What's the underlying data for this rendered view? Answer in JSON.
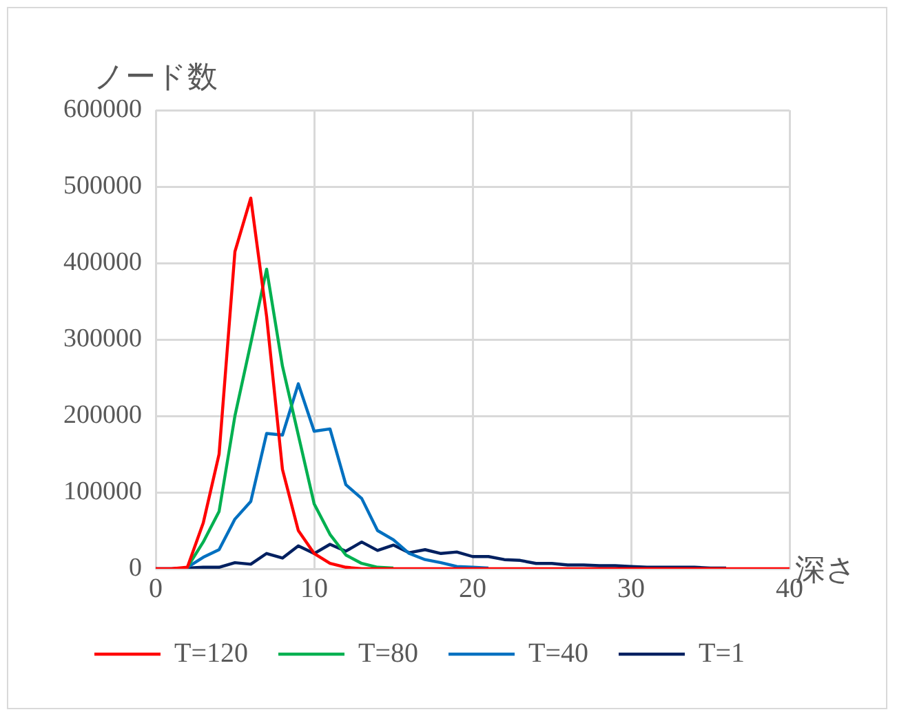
{
  "chart_data": {
    "type": "line",
    "xlabel": "深さ",
    "ylabel": "ノード数",
    "x": [
      0,
      1,
      2,
      3,
      4,
      5,
      6,
      7,
      8,
      9,
      10,
      11,
      12,
      13,
      14,
      15,
      16,
      17,
      18,
      19,
      20,
      21,
      22,
      23,
      24,
      25,
      26,
      27,
      28,
      29,
      30,
      31,
      32,
      33,
      34,
      35,
      36,
      37,
      38,
      39,
      40
    ],
    "series": [
      {
        "name": "T=120",
        "color": "#ff0000",
        "values": [
          0,
          0,
          2000,
          60000,
          150000,
          415000,
          485000,
          330000,
          130000,
          50000,
          20000,
          7000,
          2000,
          0,
          0,
          0,
          0,
          0,
          0,
          0,
          0,
          0,
          0,
          0,
          0,
          0,
          0,
          0,
          0,
          0,
          0,
          0,
          0,
          0,
          0,
          0,
          0,
          0,
          0,
          0,
          0
        ]
      },
      {
        "name": "T=80",
        "color": "#00b050",
        "values": [
          null,
          null,
          2000,
          35000,
          75000,
          200000,
          295000,
          392000,
          265000,
          175000,
          85000,
          45000,
          18000,
          7000,
          2000,
          1000,
          null,
          null,
          null,
          null,
          null,
          null,
          null,
          null,
          null,
          null,
          null,
          null,
          null,
          null,
          null,
          null,
          null,
          null,
          null,
          null,
          null,
          null,
          null,
          null,
          null
        ]
      },
      {
        "name": "T=40",
        "color": "#0070c0",
        "values": [
          null,
          null,
          2000,
          15000,
          25000,
          65000,
          88000,
          177000,
          175000,
          242000,
          180000,
          183000,
          110000,
          92000,
          50000,
          38000,
          20000,
          12000,
          8000,
          3000,
          2000,
          1000,
          null,
          null,
          null,
          null,
          null,
          null,
          null,
          null,
          null,
          null,
          null,
          null,
          null,
          null,
          null,
          null,
          null,
          null,
          null
        ]
      },
      {
        "name": "T=1",
        "color": "#002060",
        "values": [
          0,
          0,
          1000,
          2000,
          2000,
          8000,
          6000,
          20000,
          14000,
          30000,
          20000,
          32000,
          23000,
          35000,
          24000,
          31000,
          21000,
          25000,
          20000,
          22000,
          16000,
          16000,
          12000,
          11000,
          7000,
          7000,
          5000,
          5000,
          4000,
          4000,
          3000,
          2000,
          2000,
          2000,
          2000,
          1000,
          1000,
          null,
          null,
          null,
          null
        ]
      }
    ],
    "xlim": [
      0,
      40
    ],
    "xticks": [
      0,
      10,
      20,
      30,
      40
    ],
    "ylim": [
      0,
      600000
    ],
    "yticks": [
      0,
      100000,
      200000,
      300000,
      400000,
      500000,
      600000
    ],
    "grid": true,
    "legend": "bottom",
    "marker": "none",
    "line_style": "solid"
  }
}
